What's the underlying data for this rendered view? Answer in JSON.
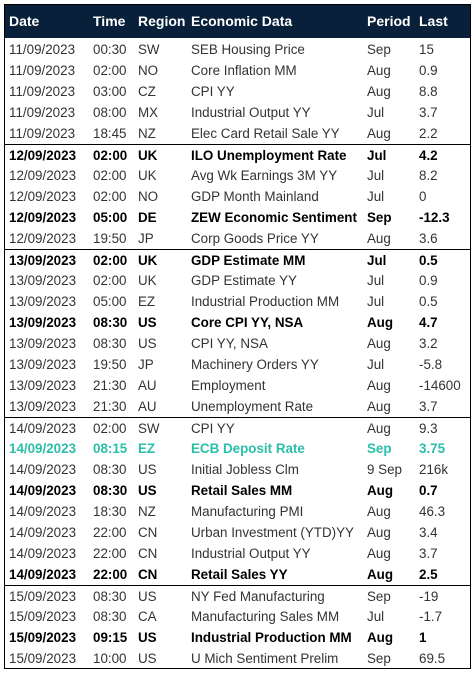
{
  "header": {
    "date": "Date",
    "time": "Time",
    "region": "Region",
    "data": "Economic Data",
    "period": "Period",
    "last": "Last"
  },
  "rows": [
    {
      "date": "11/09/2023",
      "time": "00:30",
      "region": "SW",
      "data": "SEB Housing Price",
      "period": "Sep",
      "last": "15",
      "style": "normal"
    },
    {
      "date": "11/09/2023",
      "time": "02:00",
      "region": "NO",
      "data": "Core Inflation MM",
      "period": "Aug",
      "last": "0.9",
      "style": "normal"
    },
    {
      "date": "11/09/2023",
      "time": "03:00",
      "region": "CZ",
      "data": "CPI YY",
      "period": "Aug",
      "last": "8.8",
      "style": "normal"
    },
    {
      "date": "11/09/2023",
      "time": "08:00",
      "region": "MX",
      "data": "Industrial Output YY",
      "period": "Jul",
      "last": "3.7",
      "style": "normal"
    },
    {
      "date": "11/09/2023",
      "time": "18:45",
      "region": "NZ",
      "data": "Elec Card Retail Sale YY",
      "period": "Aug",
      "last": "2.2",
      "style": "normal"
    },
    {
      "date": "12/09/2023",
      "time": "02:00",
      "region": "UK",
      "data": "ILO Unemployment Rate",
      "period": "Jul",
      "last": "4.2",
      "style": "bold"
    },
    {
      "date": "12/09/2023",
      "time": "02:00",
      "region": "UK",
      "data": "Avg Wk Earnings 3M YY",
      "period": "Jul",
      "last": "8.2",
      "style": "normal"
    },
    {
      "date": "12/09/2023",
      "time": "02:00",
      "region": "NO",
      "data": "GDP Month Mainland",
      "period": "Jul",
      "last": "0",
      "style": "normal"
    },
    {
      "date": "12/09/2023",
      "time": "05:00",
      "region": "DE",
      "data": "ZEW Economic Sentiment",
      "period": "Sep",
      "last": "-12.3",
      "style": "bold"
    },
    {
      "date": "12/09/2023",
      "time": "19:50",
      "region": "JP",
      "data": "Corp Goods Price YY",
      "period": "Aug",
      "last": "3.6",
      "style": "normal"
    },
    {
      "date": "13/09/2023",
      "time": "02:00",
      "region": "UK",
      "data": "GDP Estimate MM",
      "period": "Jul",
      "last": "0.5",
      "style": "bold"
    },
    {
      "date": "13/09/2023",
      "time": "02:00",
      "region": "UK",
      "data": "GDP Estimate YY",
      "period": "Jul",
      "last": "0.9",
      "style": "normal"
    },
    {
      "date": "13/09/2023",
      "time": "05:00",
      "region": "EZ",
      "data": "Industrial Production MM",
      "period": "Jul",
      "last": "0.5",
      "style": "normal"
    },
    {
      "date": "13/09/2023",
      "time": "08:30",
      "region": "US",
      "data": "Core CPI YY, NSA",
      "period": "Aug",
      "last": "4.7",
      "style": "bold"
    },
    {
      "date": "13/09/2023",
      "time": "08:30",
      "region": "US",
      "data": "CPI YY, NSA",
      "period": "Aug",
      "last": "3.2",
      "style": "normal"
    },
    {
      "date": "13/09/2023",
      "time": "19:50",
      "region": "JP",
      "data": "Machinery Orders YY",
      "period": "Jul",
      "last": "-5.8",
      "style": "normal"
    },
    {
      "date": "13/09/2023",
      "time": "21:30",
      "region": "AU",
      "data": "Employment",
      "period": "Aug",
      "last": "-14600",
      "style": "normal"
    },
    {
      "date": "13/09/2023",
      "time": "21:30",
      "region": "AU",
      "data": "Unemployment Rate",
      "period": "Aug",
      "last": "3.7",
      "style": "normal"
    },
    {
      "date": "14/09/2023",
      "time": "02:00",
      "region": "SW",
      "data": "CPI YY",
      "period": "Aug",
      "last": "9.3",
      "style": "normal"
    },
    {
      "date": "14/09/2023",
      "time": "08:15",
      "region": "EZ",
      "data": "ECB Deposit Rate",
      "period": "Sep",
      "last": "3.75",
      "style": "teal"
    },
    {
      "date": "14/09/2023",
      "time": "08:30",
      "region": "US",
      "data": "Initial Jobless Clm",
      "period": "9 Sep",
      "last": "216k",
      "style": "normal"
    },
    {
      "date": "14/09/2023",
      "time": "08:30",
      "region": "US",
      "data": "Retail Sales MM",
      "period": "Aug",
      "last": "0.7",
      "style": "bold"
    },
    {
      "date": "14/09/2023",
      "time": "18:30",
      "region": "NZ",
      "data": "Manufacturing PMI",
      "period": "Aug",
      "last": "46.3",
      "style": "normal"
    },
    {
      "date": "14/09/2023",
      "time": "22:00",
      "region": "CN",
      "data": "Urban Investment (YTD)YY",
      "period": "Aug",
      "last": "3.4",
      "style": "normal"
    },
    {
      "date": "14/09/2023",
      "time": "22:00",
      "region": "CN",
      "data": "Industrial Output YY",
      "period": "Aug",
      "last": "3.7",
      "style": "normal"
    },
    {
      "date": "14/09/2023",
      "time": "22:00",
      "region": "CN",
      "data": "Retail Sales YY",
      "period": "Aug",
      "last": "2.5",
      "style": "bold"
    },
    {
      "date": "15/09/2023",
      "time": "08:30",
      "region": "US",
      "data": "NY Fed Manufacturing",
      "period": "Sep",
      "last": "-19",
      "style": "normal"
    },
    {
      "date": "15/09/2023",
      "time": "08:30",
      "region": "CA",
      "data": "Manufacturing Sales MM",
      "period": "Jul",
      "last": "-1.7",
      "style": "normal"
    },
    {
      "date": "15/09/2023",
      "time": "09:15",
      "region": "US",
      "data": "Industrial Production MM",
      "period": "Aug",
      "last": "1",
      "style": "bold"
    },
    {
      "date": "15/09/2023",
      "time": "10:00",
      "region": "US",
      "data": "U Mich Sentiment Prelim",
      "period": "Sep",
      "last": "69.5",
      "style": "normal"
    }
  ]
}
